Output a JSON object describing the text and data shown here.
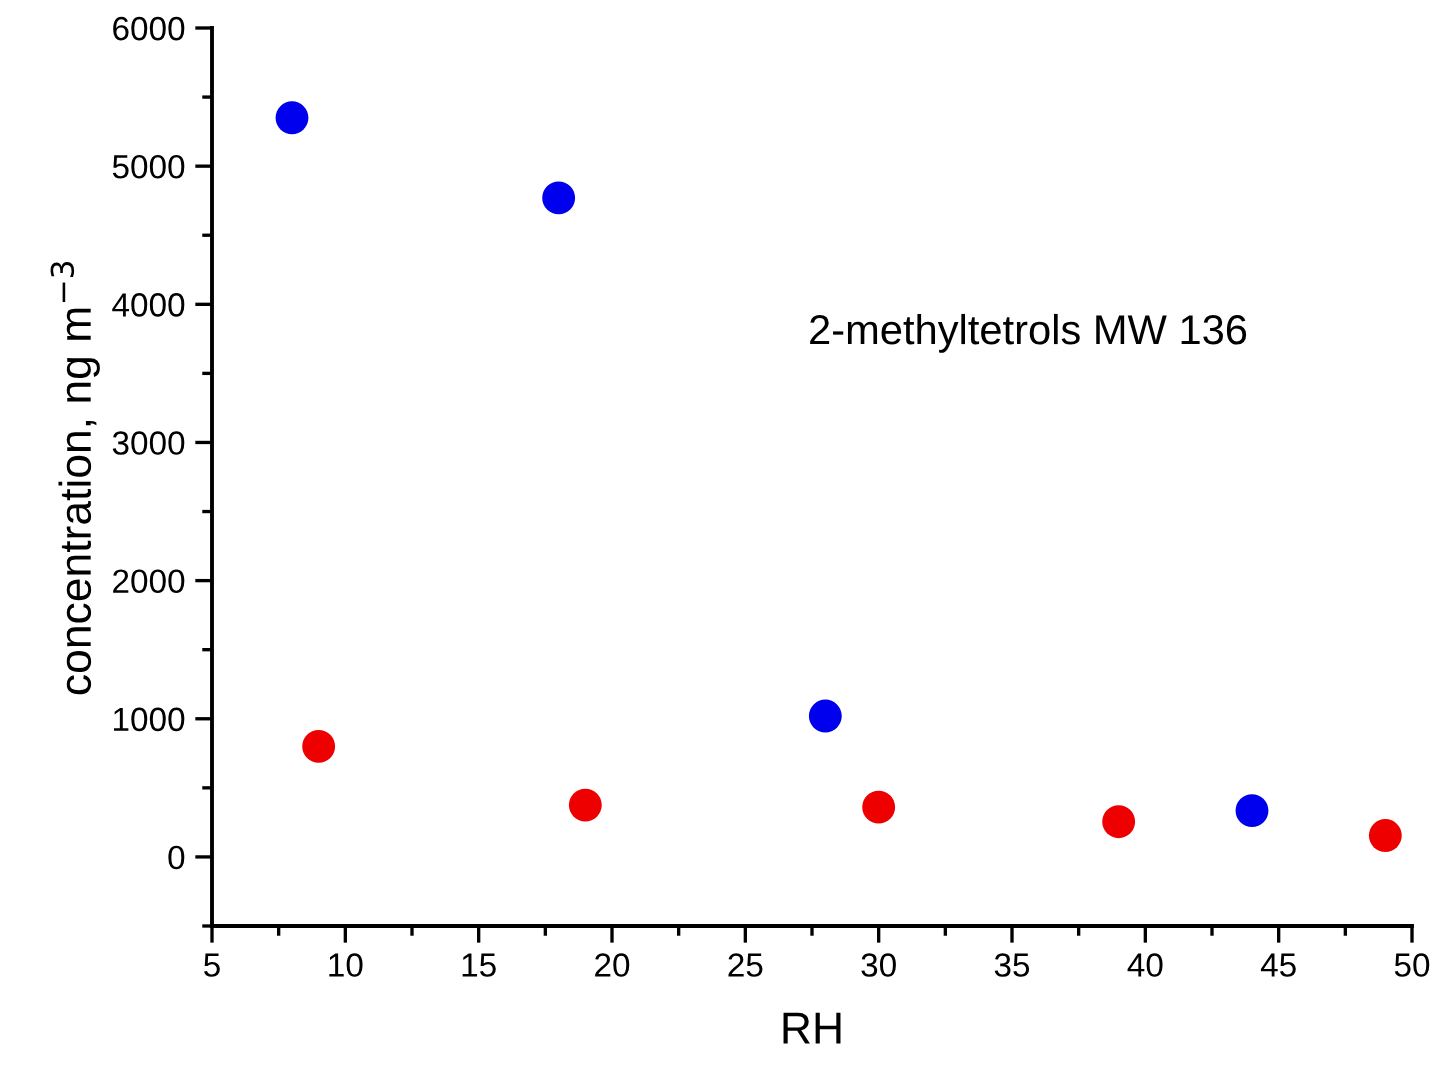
{
  "chart_data": {
    "type": "scatter",
    "xlabel": "RH",
    "ylabel": "concentration, ng m$^{−3}$",
    "annotations": [
      "2-methyltetrols MW 136"
    ],
    "series": [
      {
        "color": "#0000ee",
        "x": [
          8,
          18,
          28,
          44
        ],
        "values": [
          5350,
          4770,
          1020,
          335
        ]
      },
      {
        "color": "#ee0000",
        "x": [
          9,
          19,
          30,
          39,
          49
        ],
        "values": [
          800,
          375,
          360,
          255,
          155
        ]
      }
    ],
    "xlim": [
      5,
      50
    ],
    "xticks": [
      5,
      10,
      15,
      20,
      25,
      30,
      35,
      40,
      45,
      50
    ],
    "ylim": [
      -500,
      6000
    ],
    "yticks": [
      0,
      1000,
      2000,
      3000,
      4000,
      5000,
      6000
    ],
    "grid": false,
    "legend": false,
    "marker": "circle"
  }
}
